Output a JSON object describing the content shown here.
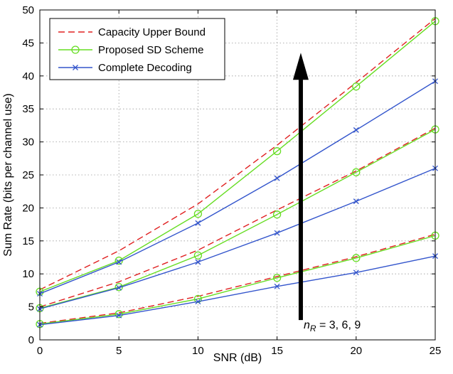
{
  "chart_data": {
    "type": "line",
    "xlabel": "SNR (dB)",
    "ylabel": "Sum Rate (bits per channel use)",
    "xlim": [
      0,
      25
    ],
    "ylim": [
      0,
      50
    ],
    "xticks": [
      0,
      5,
      10,
      15,
      20,
      25
    ],
    "yticks": [
      0,
      5,
      10,
      15,
      20,
      25,
      30,
      35,
      40,
      45,
      50
    ],
    "grid": true,
    "legend_position": "top-left",
    "x": [
      0,
      5,
      10,
      15,
      20,
      25
    ],
    "series": [
      {
        "name": "Capacity Upper Bound",
        "group": "nR=3",
        "color": "#e02020",
        "style": "dashed",
        "marker": "none",
        "values": [
          2.5,
          4.1,
          6.6,
          9.6,
          12.6,
          16.0
        ]
      },
      {
        "name": "Proposed SD Scheme",
        "group": "nR=3",
        "color": "#66dd22",
        "style": "solid",
        "marker": "circle",
        "values": [
          2.4,
          3.9,
          6.2,
          9.4,
          12.4,
          15.8
        ]
      },
      {
        "name": "Complete Decoding",
        "group": "nR=3",
        "color": "#3355cc",
        "style": "solid",
        "marker": "x",
        "values": [
          2.3,
          3.7,
          5.8,
          8.1,
          10.2,
          12.7
        ]
      },
      {
        "name": "Capacity Upper Bound",
        "group": "nR=6",
        "color": "#e02020",
        "style": "dashed",
        "marker": "none",
        "values": [
          5.0,
          8.8,
          13.6,
          19.7,
          25.6,
          32.1
        ]
      },
      {
        "name": "Proposed SD Scheme",
        "group": "nR=6",
        "color": "#66dd22",
        "style": "solid",
        "marker": "circle",
        "values": [
          4.8,
          8.0,
          12.8,
          19.0,
          25.4,
          31.9
        ]
      },
      {
        "name": "Complete Decoding",
        "group": "nR=6",
        "color": "#3355cc",
        "style": "solid",
        "marker": "x",
        "values": [
          4.7,
          7.9,
          11.8,
          16.2,
          21.0,
          26.0
        ]
      },
      {
        "name": "Capacity Upper Bound",
        "group": "nR=9",
        "color": "#e02020",
        "style": "dashed",
        "marker": "none",
        "values": [
          7.6,
          13.5,
          20.6,
          29.5,
          39.0,
          48.7
        ]
      },
      {
        "name": "Proposed SD Scheme",
        "group": "nR=9",
        "color": "#66dd22",
        "style": "solid",
        "marker": "circle",
        "values": [
          7.3,
          12.0,
          19.1,
          28.6,
          38.4,
          48.3
        ]
      },
      {
        "name": "Complete Decoding",
        "group": "nR=9",
        "color": "#3355cc",
        "style": "solid",
        "marker": "x",
        "values": [
          7.0,
          11.8,
          17.7,
          24.5,
          31.8,
          39.2
        ]
      }
    ],
    "legend": [
      {
        "label": "Capacity Upper Bound",
        "color": "#e02020",
        "style": "dashed",
        "marker": "none"
      },
      {
        "label": "Proposed SD Scheme",
        "color": "#66dd22",
        "style": "solid",
        "marker": "circle"
      },
      {
        "label": "Complete Decoding",
        "color": "#3355cc",
        "style": "solid",
        "marker": "x"
      }
    ],
    "annotation": {
      "prefix": "n",
      "subscript": "R",
      "suffix": " = 3, 6, 9",
      "arrow_from": [
        16.5,
        3
      ],
      "arrow_to": [
        16.5,
        42
      ]
    }
  }
}
